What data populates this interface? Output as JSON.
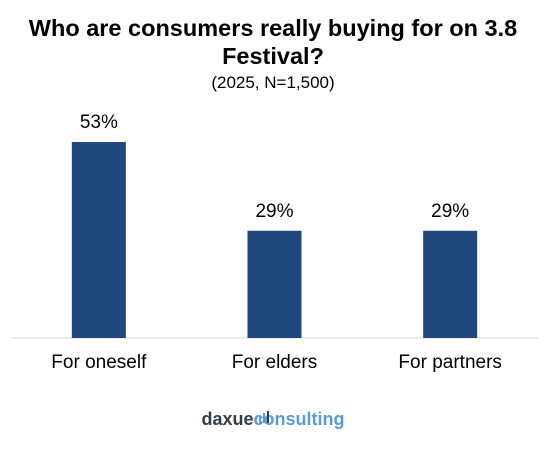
{
  "title": "Who are consumers really buying for on 3.8 Festival?",
  "subtitle": "(2025, N=1,500)",
  "logo": {
    "part1": "daxue",
    "part2": "consulting"
  },
  "colors": {
    "bar": "#1f497d",
    "axis": "#d9d9d9"
  },
  "chart_data": {
    "type": "bar",
    "title": "Who are consumers really buying for on 3.8 Festival?",
    "subtitle": "(2025, N=1,500)",
    "categories": [
      "For oneself",
      "For elders",
      "For partners"
    ],
    "values": [
      53,
      29,
      29
    ],
    "labels": [
      "53%",
      "29%",
      "29%"
    ],
    "unit": "%",
    "ylim": [
      0,
      53
    ],
    "grid": false,
    "legend": "none"
  }
}
